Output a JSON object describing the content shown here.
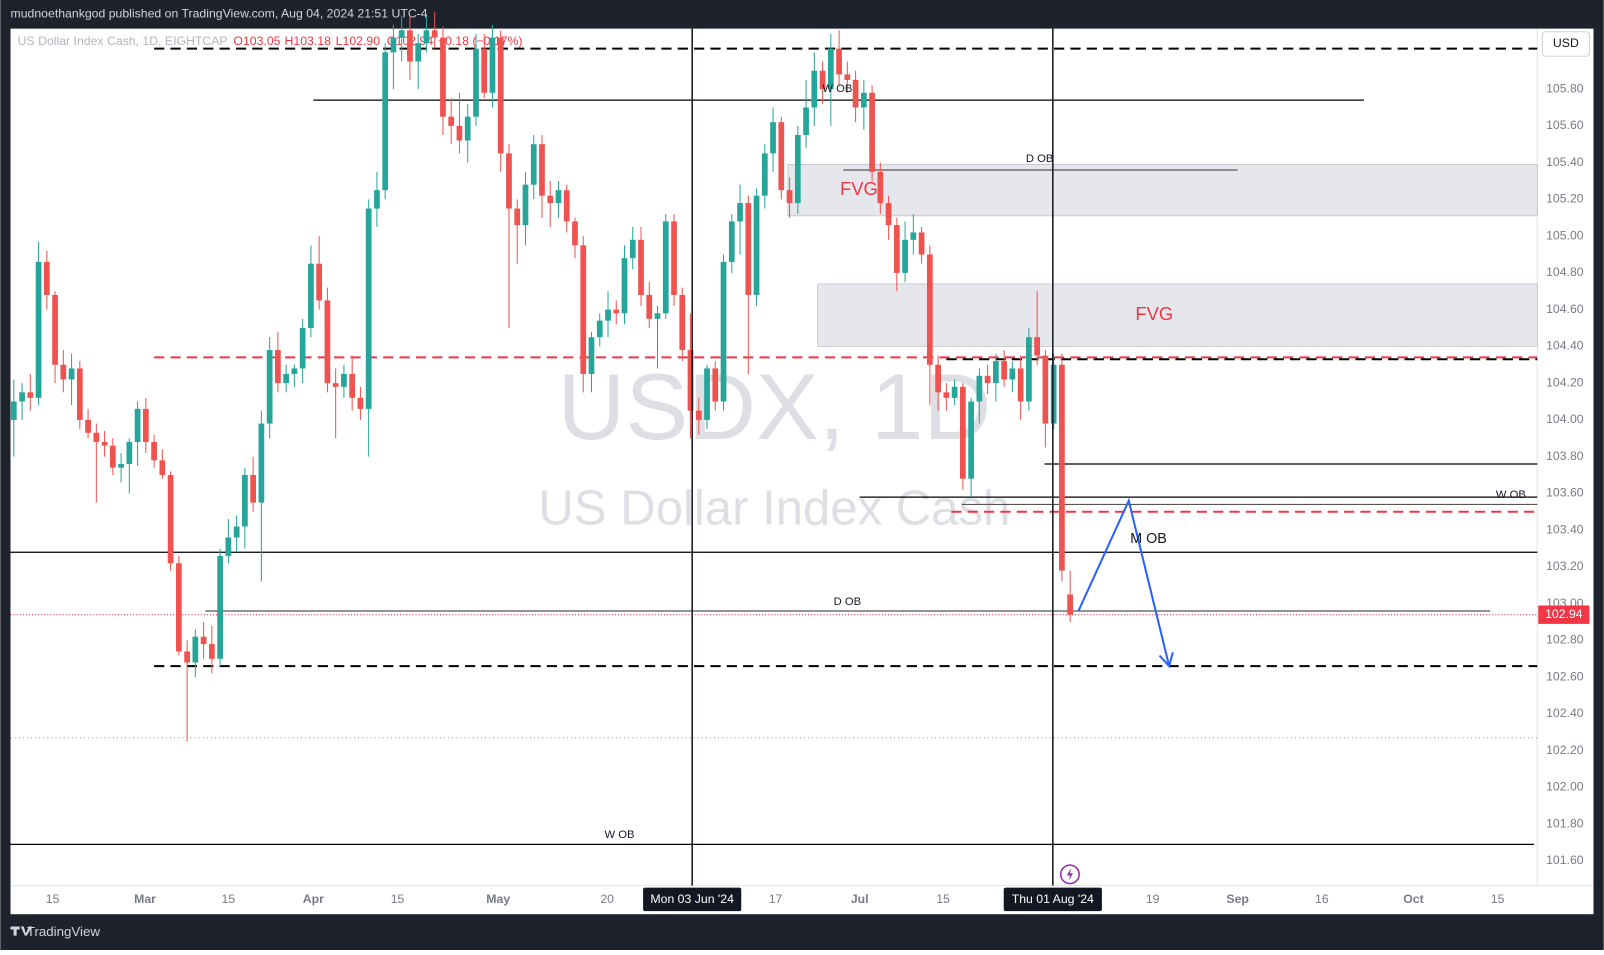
{
  "header": "mudnoethankgod published on TradingView.com, Aug 04, 2024 21:51 UTC-4",
  "footer": "TradingView",
  "chart_data": {
    "type": "candlestick",
    "title": "US Dollar Index Cash, 1D, EIGHTCAP",
    "status": [
      "O103.05",
      "H103.18",
      "L102.90",
      "C102.94",
      "−0.18 (−0.17%)"
    ],
    "watermark": "USDX, 1D",
    "watermark_subtitle": "US Dollar Index Cash",
    "currency": "USD",
    "up_color": "#26a69a",
    "down_color": "#ef5350",
    "ohlc": [
      [
        104.0,
        104.22,
        103.8,
        104.1
      ],
      [
        104.1,
        104.2,
        104.0,
        104.15
      ],
      [
        104.15,
        104.25,
        104.05,
        104.12
      ],
      [
        104.12,
        104.97,
        104.08,
        104.86
      ],
      [
        104.86,
        104.92,
        104.6,
        104.68
      ],
      [
        104.68,
        104.7,
        104.2,
        104.3
      ],
      [
        104.3,
        104.38,
        104.15,
        104.22
      ],
      [
        104.22,
        104.36,
        104.08,
        104.28
      ],
      [
        104.28,
        104.32,
        103.95,
        104.0
      ],
      [
        104.0,
        104.06,
        103.9,
        103.93
      ],
      [
        103.93,
        103.98,
        103.55,
        103.88
      ],
      [
        103.88,
        103.94,
        103.8,
        103.86
      ],
      [
        103.86,
        103.9,
        103.7,
        103.74
      ],
      [
        103.74,
        103.82,
        103.66,
        103.76
      ],
      [
        103.76,
        103.9,
        103.6,
        103.88
      ],
      [
        103.88,
        104.1,
        103.75,
        104.06
      ],
      [
        104.06,
        104.12,
        103.82,
        103.88
      ],
      [
        103.88,
        103.92,
        103.74,
        103.78
      ],
      [
        103.78,
        103.84,
        103.68,
        103.7
      ],
      [
        103.7,
        103.72,
        103.18,
        103.22
      ],
      [
        103.22,
        103.26,
        102.72,
        102.74
      ],
      [
        102.74,
        102.8,
        102.25,
        102.68
      ],
      [
        102.68,
        102.86,
        102.6,
        102.82
      ],
      [
        102.82,
        102.9,
        102.7,
        102.78
      ],
      [
        102.78,
        102.88,
        102.62,
        102.7
      ],
      [
        102.7,
        103.3,
        102.66,
        103.26
      ],
      [
        103.26,
        103.46,
        103.22,
        103.36
      ],
      [
        103.36,
        103.48,
        103.28,
        103.42
      ],
      [
        103.42,
        103.74,
        103.3,
        103.7
      ],
      [
        103.7,
        103.8,
        103.5,
        103.55
      ],
      [
        103.55,
        104.05,
        103.12,
        103.98
      ],
      [
        103.98,
        104.45,
        103.9,
        104.38
      ],
      [
        104.38,
        104.48,
        104.15,
        104.2
      ],
      [
        104.2,
        104.3,
        104.15,
        104.25
      ],
      [
        104.25,
        104.3,
        104.18,
        104.28
      ],
      [
        104.28,
        104.55,
        104.2,
        104.5
      ],
      [
        104.5,
        104.95,
        104.45,
        104.85
      ],
      [
        104.85,
        105.0,
        104.6,
        104.65
      ],
      [
        104.65,
        104.72,
        104.15,
        104.2
      ],
      [
        104.2,
        104.28,
        103.9,
        104.18
      ],
      [
        104.18,
        104.3,
        104.12,
        104.25
      ],
      [
        104.25,
        104.35,
        104.05,
        104.12
      ],
      [
        104.12,
        104.18,
        104.0,
        104.06
      ],
      [
        104.06,
        105.2,
        103.8,
        105.15
      ],
      [
        105.15,
        105.35,
        105.05,
        105.25
      ],
      [
        105.25,
        106.05,
        105.2,
        106.0
      ],
      [
        106.0,
        106.15,
        105.8,
        106.08
      ],
      [
        106.08,
        106.2,
        105.95,
        106.12
      ],
      [
        106.12,
        106.2,
        105.85,
        105.95
      ],
      [
        105.95,
        106.1,
        105.8,
        106.05
      ],
      [
        106.05,
        106.2,
        106.0,
        106.12
      ],
      [
        106.12,
        106.22,
        106.02,
        106.08
      ],
      [
        106.08,
        106.14,
        105.55,
        105.65
      ],
      [
        105.65,
        105.75,
        105.5,
        105.6
      ],
      [
        105.6,
        105.78,
        105.45,
        105.52
      ],
      [
        105.52,
        105.72,
        105.4,
        105.65
      ],
      [
        105.65,
        106.1,
        105.6,
        106.02
      ],
      [
        106.02,
        106.1,
        105.75,
        105.78
      ],
      [
        105.78,
        106.15,
        105.7,
        106.08
      ],
      [
        106.08,
        106.12,
        105.35,
        105.45
      ],
      [
        105.45,
        105.5,
        104.5,
        105.15
      ],
      [
        105.15,
        105.2,
        104.85,
        105.06
      ],
      [
        105.06,
        105.35,
        104.95,
        105.28
      ],
      [
        105.28,
        105.55,
        105.2,
        105.5
      ],
      [
        105.5,
        105.55,
        105.1,
        105.22
      ],
      [
        105.22,
        105.3,
        105.05,
        105.18
      ],
      [
        105.18,
        105.3,
        105.1,
        105.25
      ],
      [
        105.25,
        105.28,
        105.02,
        105.08
      ],
      [
        105.08,
        105.1,
        104.88,
        104.95
      ],
      [
        104.95,
        105.0,
        104.15,
        104.25
      ],
      [
        104.25,
        104.48,
        104.15,
        104.45
      ],
      [
        104.45,
        104.58,
        104.4,
        104.54
      ],
      [
        104.54,
        104.7,
        104.45,
        104.6
      ],
      [
        104.6,
        104.65,
        104.52,
        104.58
      ],
      [
        104.58,
        104.95,
        104.52,
        104.88
      ],
      [
        104.88,
        105.05,
        104.82,
        104.98
      ],
      [
        104.98,
        105.05,
        104.62,
        104.68
      ],
      [
        104.68,
        104.75,
        104.5,
        104.55
      ],
      [
        104.55,
        104.62,
        104.28,
        104.58
      ],
      [
        104.58,
        105.12,
        104.55,
        105.08
      ],
      [
        105.08,
        105.12,
        104.62,
        104.68
      ],
      [
        104.68,
        104.72,
        104.32,
        104.38
      ],
      [
        104.38,
        104.58,
        103.9,
        104.05
      ],
      [
        104.05,
        104.12,
        103.92,
        104.0
      ],
      [
        104.0,
        104.3,
        103.95,
        104.28
      ],
      [
        104.28,
        104.32,
        104.05,
        104.1
      ],
      [
        104.1,
        104.9,
        104.05,
        104.86
      ],
      [
        104.86,
        105.12,
        104.8,
        105.08
      ],
      [
        105.08,
        105.28,
        104.9,
        105.18
      ],
      [
        105.18,
        105.22,
        104.25,
        104.68
      ],
      [
        104.68,
        105.26,
        104.62,
        105.22
      ],
      [
        105.22,
        105.5,
        105.15,
        105.45
      ],
      [
        105.45,
        105.7,
        105.35,
        105.62
      ],
      [
        105.62,
        105.65,
        105.2,
        105.25
      ],
      [
        105.25,
        105.32,
        105.1,
        105.18
      ],
      [
        105.18,
        105.6,
        105.12,
        105.55
      ],
      [
        105.55,
        105.85,
        105.48,
        105.7
      ],
      [
        105.7,
        106.0,
        105.6,
        105.9
      ],
      [
        105.9,
        105.95,
        105.72,
        105.8
      ],
      [
        105.8,
        106.1,
        105.6,
        106.02
      ],
      [
        106.02,
        106.12,
        105.82,
        105.88
      ],
      [
        105.88,
        105.95,
        105.78,
        105.85
      ],
      [
        105.85,
        105.9,
        105.62,
        105.7
      ],
      [
        105.7,
        105.85,
        105.58,
        105.78
      ],
      [
        105.78,
        105.82,
        105.3,
        105.35
      ],
      [
        105.35,
        105.4,
        105.12,
        105.18
      ],
      [
        105.18,
        105.22,
        104.98,
        105.06
      ],
      [
        105.06,
        105.1,
        104.7,
        104.8
      ],
      [
        104.8,
        105.08,
        104.75,
        104.98
      ],
      [
        104.98,
        105.12,
        104.9,
        105.02
      ],
      [
        105.02,
        105.05,
        104.85,
        104.9
      ],
      [
        104.9,
        104.95,
        104.08,
        104.3
      ],
      [
        104.3,
        104.35,
        104.05,
        104.15
      ],
      [
        104.15,
        104.2,
        104.05,
        104.12
      ],
      [
        104.12,
        104.22,
        104.08,
        104.18
      ],
      [
        104.18,
        104.2,
        103.62,
        103.68
      ],
      [
        103.68,
        104.12,
        103.58,
        104.1
      ],
      [
        104.1,
        104.28,
        103.98,
        104.24
      ],
      [
        104.24,
        104.3,
        104.14,
        104.2
      ],
      [
        104.2,
        104.36,
        104.1,
        104.32
      ],
      [
        104.32,
        104.38,
        104.18,
        104.22
      ],
      [
        104.22,
        104.32,
        104.15,
        104.28
      ],
      [
        104.28,
        104.35,
        104.0,
        104.1
      ],
      [
        104.1,
        104.5,
        104.05,
        104.45
      ],
      [
        104.45,
        104.7,
        104.3,
        104.35
      ],
      [
        104.35,
        104.38,
        103.85,
        103.98
      ],
      [
        103.98,
        104.36,
        103.95,
        104.3
      ],
      [
        104.3,
        104.36,
        103.12,
        103.18
      ],
      [
        103.05,
        103.18,
        102.9,
        102.94
      ]
    ],
    "xlim": [
      -0.4,
      184.6
    ],
    "xticks": [
      {
        "value": 4.7,
        "label": "15"
      },
      {
        "value": 15.9,
        "label": "Mar"
      },
      {
        "value": 26.0,
        "label": "15"
      },
      {
        "value": 36.3,
        "label": "Apr"
      },
      {
        "value": 46.5,
        "label": "15"
      },
      {
        "value": 58.7,
        "label": "May"
      },
      {
        "value": 71.9,
        "label": "20"
      },
      {
        "value": 92.3,
        "label": "17"
      },
      {
        "value": 102.5,
        "label": "Jul"
      },
      {
        "value": 112.6,
        "label": "15"
      },
      {
        "value": 138.0,
        "label": "19"
      },
      {
        "value": 148.3,
        "label": "Sep"
      },
      {
        "value": 158.5,
        "label": "16"
      },
      {
        "value": 169.6,
        "label": "Oct"
      },
      {
        "value": 179.8,
        "label": "15"
      }
    ],
    "crosshairs": [
      {
        "x": 82.2,
        "label": "Mon 03 Jun '24"
      },
      {
        "x": 125.9,
        "label": "Thu 01 Aug '24"
      }
    ],
    "ylim": [
      101.466,
      106.129
    ],
    "yticks": [
      {
        "value": 105.8,
        "label": "105.80"
      },
      {
        "value": 105.6,
        "label": "105.60"
      },
      {
        "value": 105.4,
        "label": "105.40"
      },
      {
        "value": 105.2,
        "label": "105.20"
      },
      {
        "value": 105,
        "label": "105.00"
      },
      {
        "value": 104.8,
        "label": "104.80"
      },
      {
        "value": 104.6,
        "label": "104.60"
      },
      {
        "value": 104.4,
        "label": "104.40"
      },
      {
        "value": 104.2,
        "label": "104.20"
      },
      {
        "value": 104,
        "label": "104.00"
      },
      {
        "value": 103.8,
        "label": "103.80"
      },
      {
        "value": 103.6,
        "label": "103.60"
      },
      {
        "value": 103.4,
        "label": "103.40"
      },
      {
        "value": 103.2,
        "label": "103.20"
      },
      {
        "value": 103,
        "label": "103.00"
      },
      {
        "value": 102.8,
        "label": "102.80"
      },
      {
        "value": 102.6,
        "label": "102.60"
      },
      {
        "value": 102.4,
        "label": "102.40"
      },
      {
        "value": 102.2,
        "label": "102.20"
      },
      {
        "value": 102,
        "label": "102.00"
      },
      {
        "value": 101.8,
        "label": "101.80"
      },
      {
        "value": 101.6,
        "label": "101.60"
      }
    ],
    "grid": false,
    "levels": [
      {
        "y": 106.02,
        "x0": 17,
        "style": "dashed",
        "color": "#000000"
      },
      {
        "y": 105.74,
        "x0": 36.3,
        "x1": 163.6,
        "style": "solid",
        "color": "#000000"
      },
      {
        "y": 105.36,
        "x0": 100.5,
        "x1": 148.3,
        "style": "solid",
        "color": "#555555"
      },
      {
        "y": 104.34,
        "x0": 17,
        "style": "dashed",
        "color": "#f23645"
      },
      {
        "y": 104.33,
        "x0": 113,
        "style": "dashed",
        "color": "#000000"
      },
      {
        "y": 103.76,
        "x0": 124.9,
        "style": "solid",
        "color": "#000000"
      },
      {
        "y": 103.58,
        "x0": 102.5,
        "style": "solid",
        "color": "#000000"
      },
      {
        "y": 103.54,
        "x0": 114.9,
        "style": "solid",
        "color": "#555555"
      },
      {
        "y": 103.5,
        "x0": 113.6,
        "style": "dashed",
        "color": "#f23645"
      },
      {
        "y": 103.28,
        "x0": -0.4,
        "style": "solid",
        "color": "#000000"
      },
      {
        "y": 102.96,
        "x0": 23.2,
        "x1": 178.9,
        "style": "solid",
        "color": "#555555"
      },
      {
        "y": 102.66,
        "x0": 17,
        "style": "dashed",
        "color": "#000000"
      },
      {
        "y": 102.27,
        "x0": -0.4,
        "style": "dotted",
        "color": "#9598a1"
      },
      {
        "y": 101.69,
        "x0": -0.4,
        "x1": 184.2,
        "style": "solid",
        "color": "#000000"
      }
    ],
    "zones": [
      {
        "y0": 105.11,
        "y1": 105.39,
        "x0": 93.8,
        "label": "FVG",
        "lx": 102.4,
        "ly": 105.25
      },
      {
        "y0": 104.4,
        "y1": 104.74,
        "x0": 97.4,
        "label": "FVG",
        "lx": 138.2,
        "ly": 104.57
      }
    ],
    "labels": [
      {
        "text": "W OB",
        "x": 99.8,
        "y": 105.8
      },
      {
        "text": "D OB",
        "x": 124.3,
        "y": 105.42
      },
      {
        "text": "W OB",
        "x": 181.4,
        "y": 103.59
      },
      {
        "text": "M OB",
        "x": 137.5,
        "y": 103.35
      },
      {
        "text": "D OB",
        "x": 101.0,
        "y": 103.01
      },
      {
        "text": "W OB",
        "x": 73.4,
        "y": 101.74
      }
    ],
    "projection": {
      "x": [
        129.0,
        135.1,
        140.0
      ],
      "y": [
        102.96,
        103.56,
        102.66
      ],
      "color": "#2962ff"
    }
  }
}
